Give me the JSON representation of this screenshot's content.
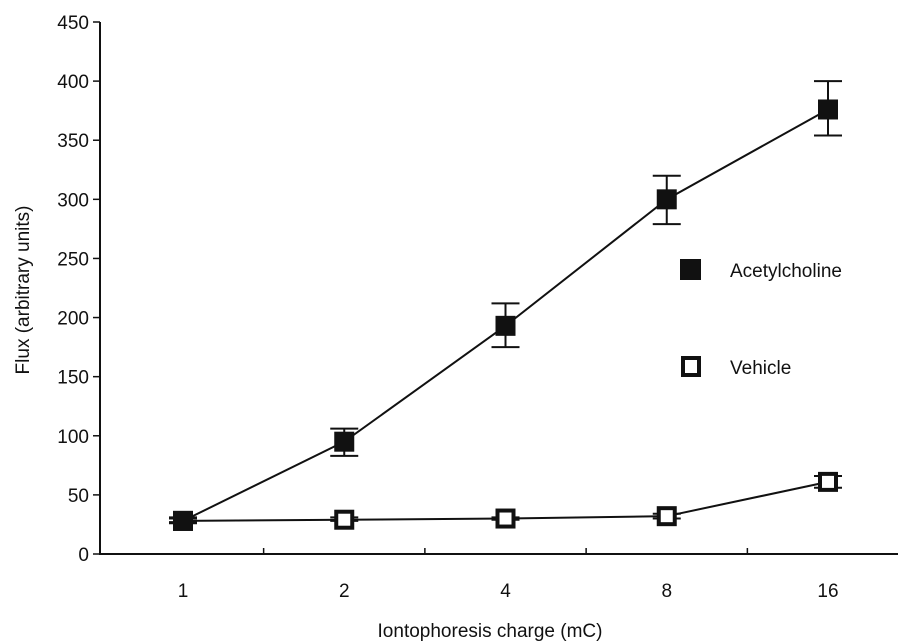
{
  "chart_data": {
    "type": "line",
    "categories": [
      "1",
      "2",
      "4",
      "8",
      "16"
    ],
    "series": [
      {
        "name": "Acetylcholine",
        "marker": "square-filled",
        "values": [
          28,
          95,
          193,
          300,
          376
        ],
        "error_low": [
          26,
          83,
          175,
          279,
          354
        ],
        "error_high": [
          31,
          106,
          212,
          320,
          400
        ]
      },
      {
        "name": "Vehicle",
        "marker": "square-open",
        "values": [
          28,
          29,
          30,
          32,
          61
        ],
        "error_low": [
          27,
          28,
          29,
          30,
          56
        ],
        "error_high": [
          30,
          31,
          31,
          34,
          66
        ]
      }
    ],
    "xlabel": "Iontophoresis charge (mC)",
    "ylabel": "Flux (arbitrary units)",
    "ylim": [
      0,
      450
    ],
    "yticks": [
      0,
      50,
      100,
      150,
      200,
      250,
      300,
      350,
      400,
      450
    ],
    "grid": false,
    "legend": "center-right",
    "colors": {
      "ink": "#111111",
      "background": "#ffffff"
    }
  }
}
